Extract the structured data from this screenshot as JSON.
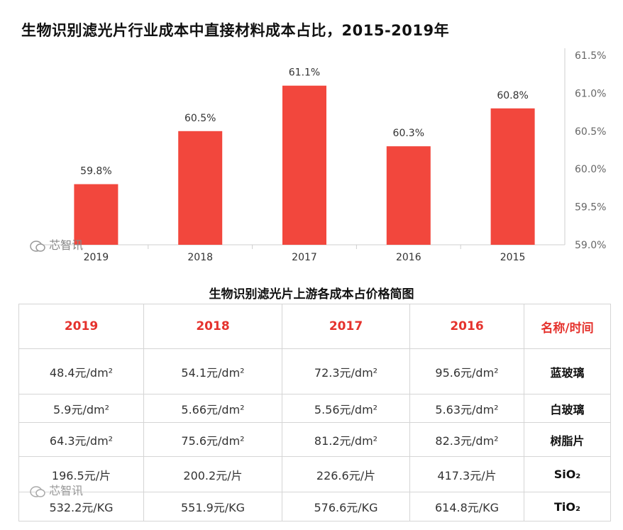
{
  "title": "生物识别滤光片行业成本中直接材料成本占比，2015-2019年",
  "watermark": "芯智讯",
  "chart_data": {
    "type": "bar",
    "categories": [
      "2019",
      "2018",
      "2017",
      "2016",
      "2015"
    ],
    "values": [
      59.8,
      60.5,
      61.1,
      60.3,
      60.8
    ],
    "value_labels": [
      "59.8%",
      "60.5%",
      "61.1%",
      "60.3%",
      "60.8%"
    ],
    "ylim": [
      59.0,
      61.5
    ],
    "yticks": [
      59.0,
      59.5,
      60.0,
      60.5,
      61.0,
      61.5
    ],
    "ytick_labels": [
      "59.0%",
      "59.5%",
      "60.0%",
      "60.5%",
      "61.0%",
      "61.5%"
    ],
    "yaxis_side": "right",
    "grid": false,
    "bar_color": "#f2473d",
    "xlabel": "",
    "ylabel": ""
  },
  "table": {
    "title": "生物识别滤光片上游各成本占价格简图",
    "headers": [
      "2019",
      "2018",
      "2017",
      "2016",
      "名称/时间"
    ],
    "rows": [
      {
        "values": [
          "48.4元/dm²",
          "54.1元/dm²",
          "72.3元/dm²",
          "95.6元/dm²"
        ],
        "name": "蓝玻璃"
      },
      {
        "values": [
          "5.9元/dm²",
          "5.66元/dm²",
          "5.56元/dm²",
          "5.63元/dm²"
        ],
        "name": "白玻璃"
      },
      {
        "values": [
          "64.3元/dm²",
          "75.6元/dm²",
          "81.2元/dm²",
          "82.3元/dm²"
        ],
        "name": "树脂片"
      },
      {
        "values": [
          "196.5元/片",
          "200.2元/片",
          "226.6元/片",
          "417.3元/片"
        ],
        "name": "SiO₂"
      },
      {
        "values": [
          "532.2元/KG",
          "551.9元/KG",
          "576.6元/KG",
          "614.8元/KG"
        ],
        "name": "TiO₂"
      }
    ]
  }
}
